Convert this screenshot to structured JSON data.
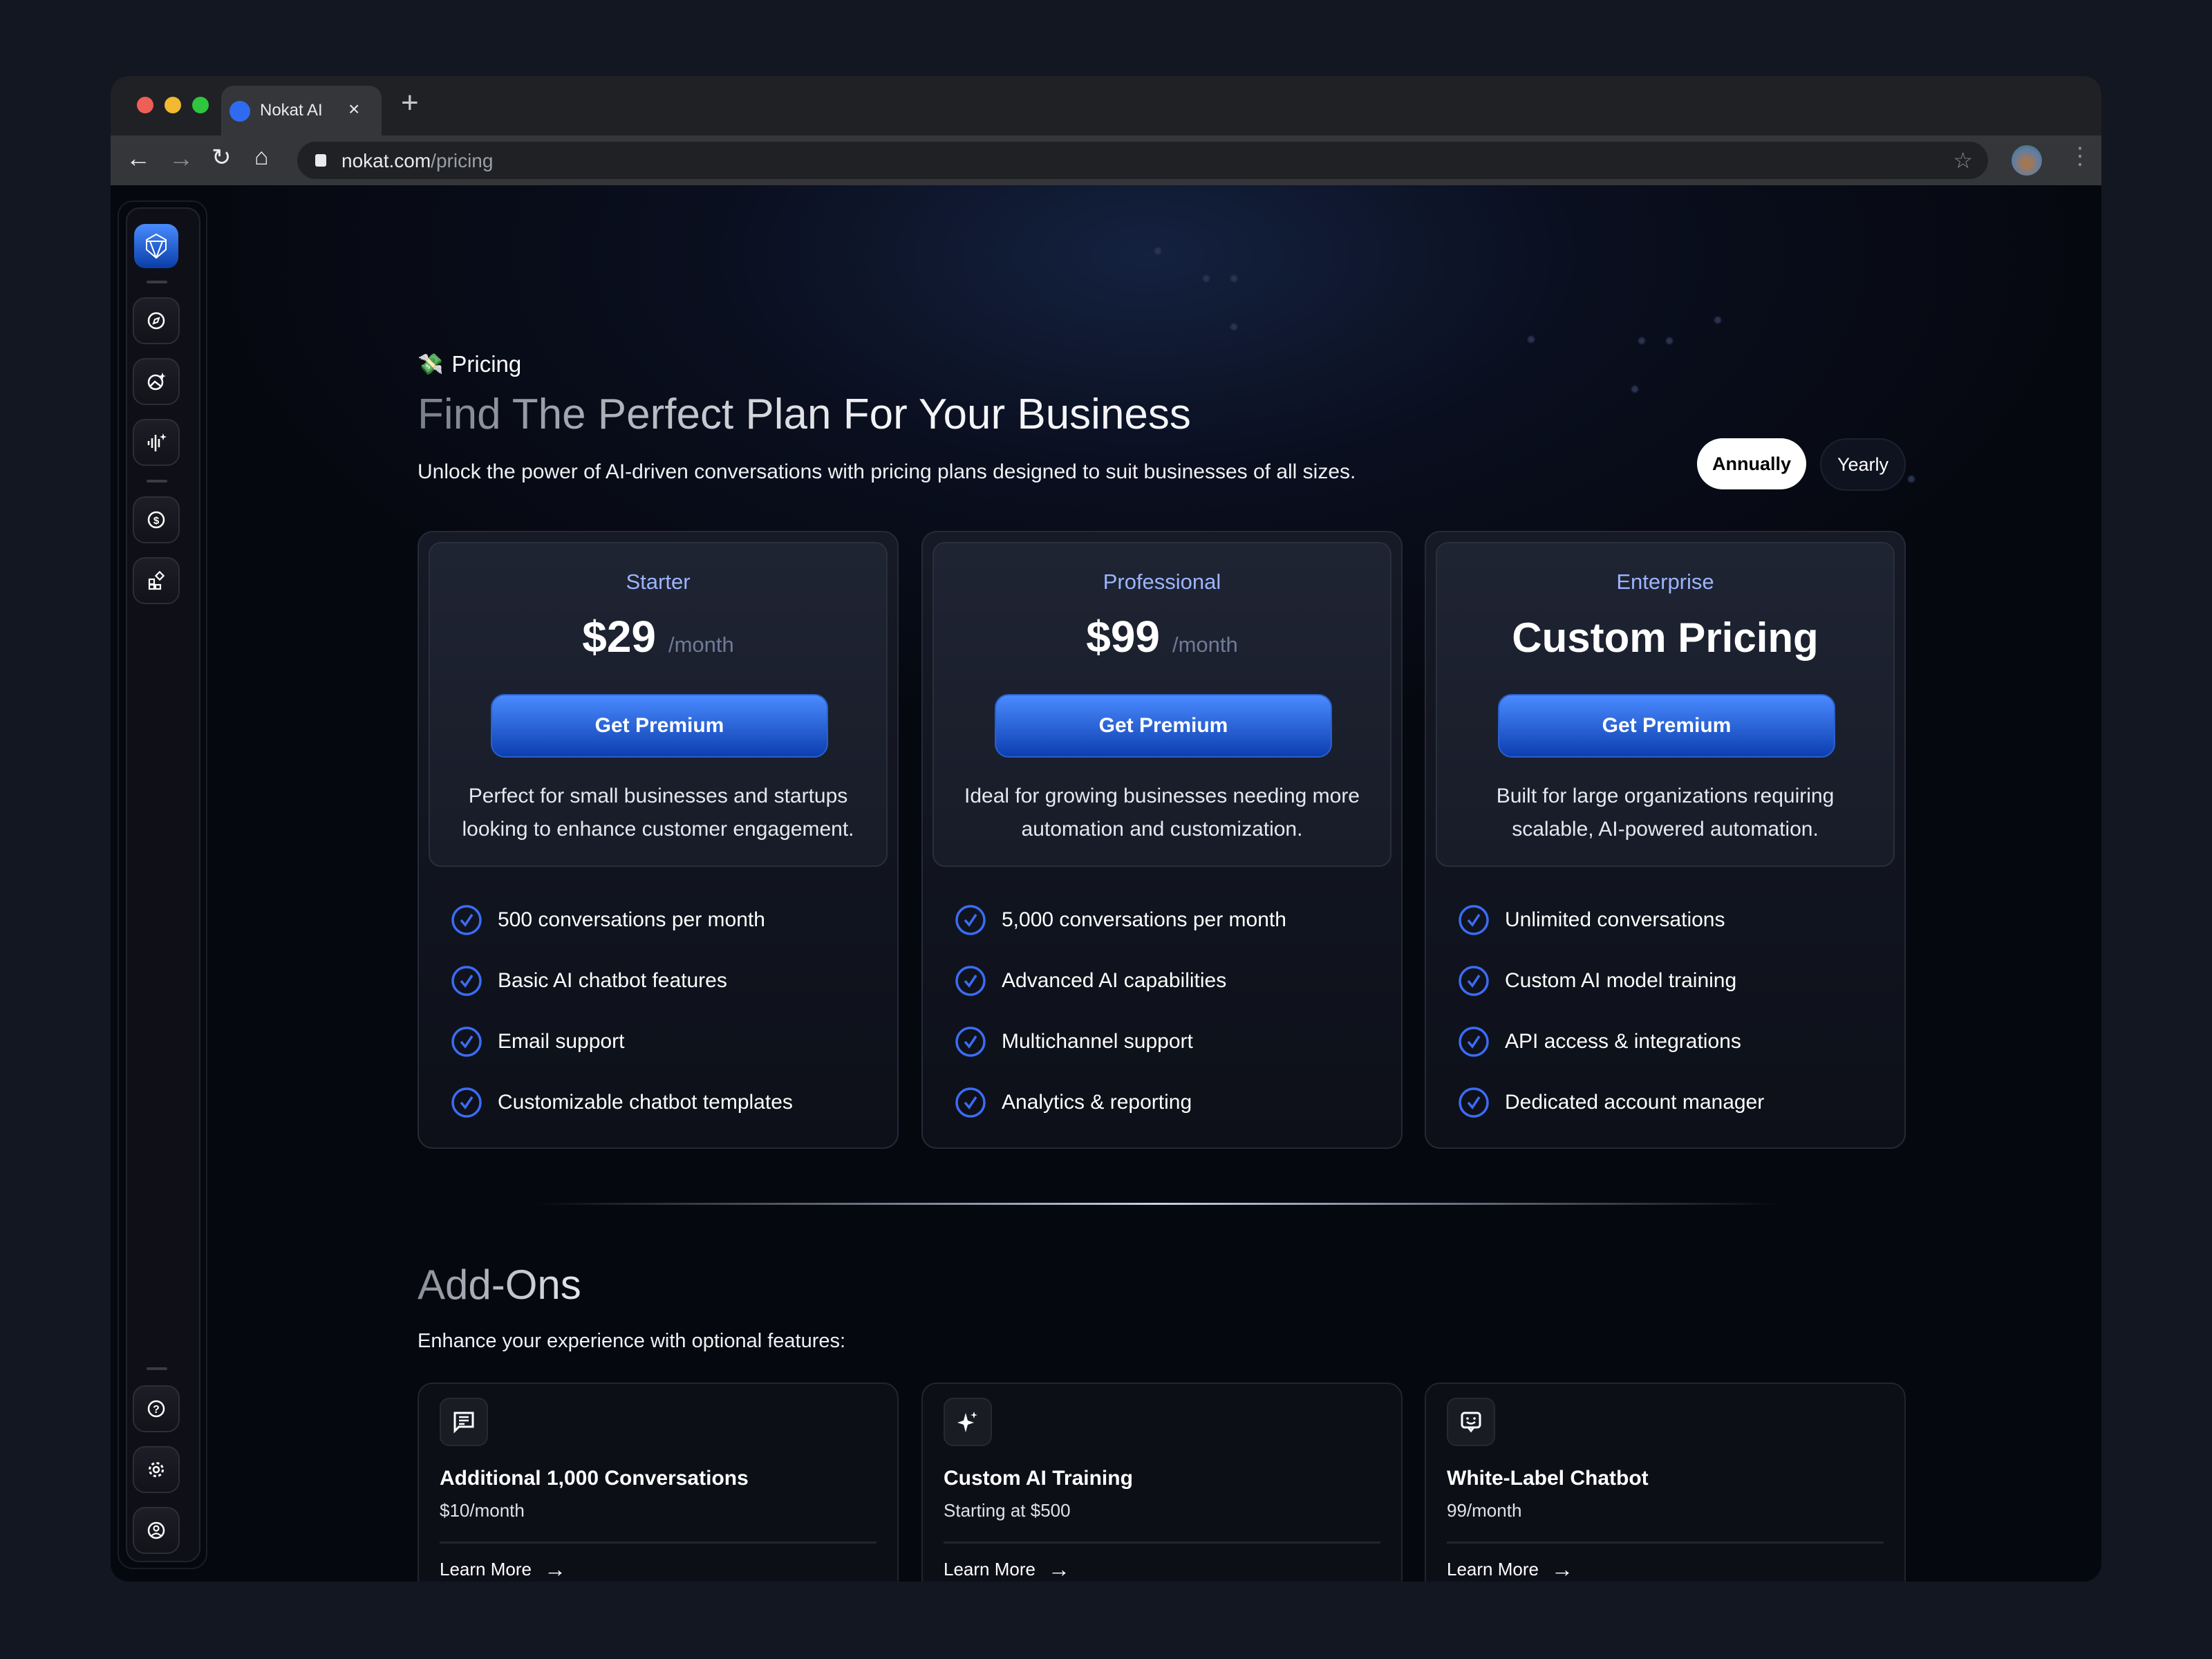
{
  "browser": {
    "tab_title": "Nokat AI",
    "url_host": "nokat.com",
    "url_path": "/pricing"
  },
  "colors": {
    "accent": "#2f6bf0",
    "plan_name": "#9bb5ff",
    "background": "#06080f"
  },
  "header": {
    "eyebrow": "Pricing",
    "title": "Find The Perfect Plan For Your Business",
    "subtitle": "Unlock the power of AI-driven conversations with pricing plans designed to suit businesses of all sizes.",
    "billing_toggle": {
      "options": [
        "Annually",
        "Yearly"
      ],
      "selected": "Annually"
    }
  },
  "plans": [
    {
      "name": "Starter",
      "price": "$29",
      "period": "/month",
      "cta": "Get Premium",
      "desc1": "Perfect for small businesses and startups",
      "desc2": "looking to enhance customer engagement.",
      "features": [
        "500 conversations per month",
        "Basic AI chatbot features",
        "Email support",
        "Customizable chatbot templates"
      ]
    },
    {
      "name": "Professional",
      "price": "$99",
      "period": "/month",
      "cta": "Get Premium",
      "desc1": "Ideal for growing businesses needing more",
      "desc2": "automation and customization.",
      "features": [
        "5,000 conversations per month",
        "Advanced AI capabilities",
        "Multichannel support",
        "Analytics & reporting"
      ]
    },
    {
      "name": "Enterprise",
      "price": "Custom Pricing",
      "cta": "Get Premium",
      "desc1": "Built for large organizations requiring",
      "desc2": "scalable, AI-powered automation.",
      "features": [
        "Unlimited conversations",
        "Custom AI model training",
        "API access & integrations",
        "Dedicated account manager"
      ]
    }
  ],
  "addons": {
    "title": "Add-Ons",
    "subtitle": "Enhance your experience with optional features:",
    "items": [
      {
        "title": "Additional 1,000 Conversations",
        "price": "$10/month",
        "link": "Learn More",
        "icon": "message-lines-icon"
      },
      {
        "title": "Custom AI Training",
        "price": "Starting at $500",
        "link": "Learn More",
        "icon": "sparkle-icon"
      },
      {
        "title": "White-Label Chatbot",
        "price": "99/month",
        "link": "Learn More",
        "icon": "chat-smile-icon"
      }
    ]
  }
}
